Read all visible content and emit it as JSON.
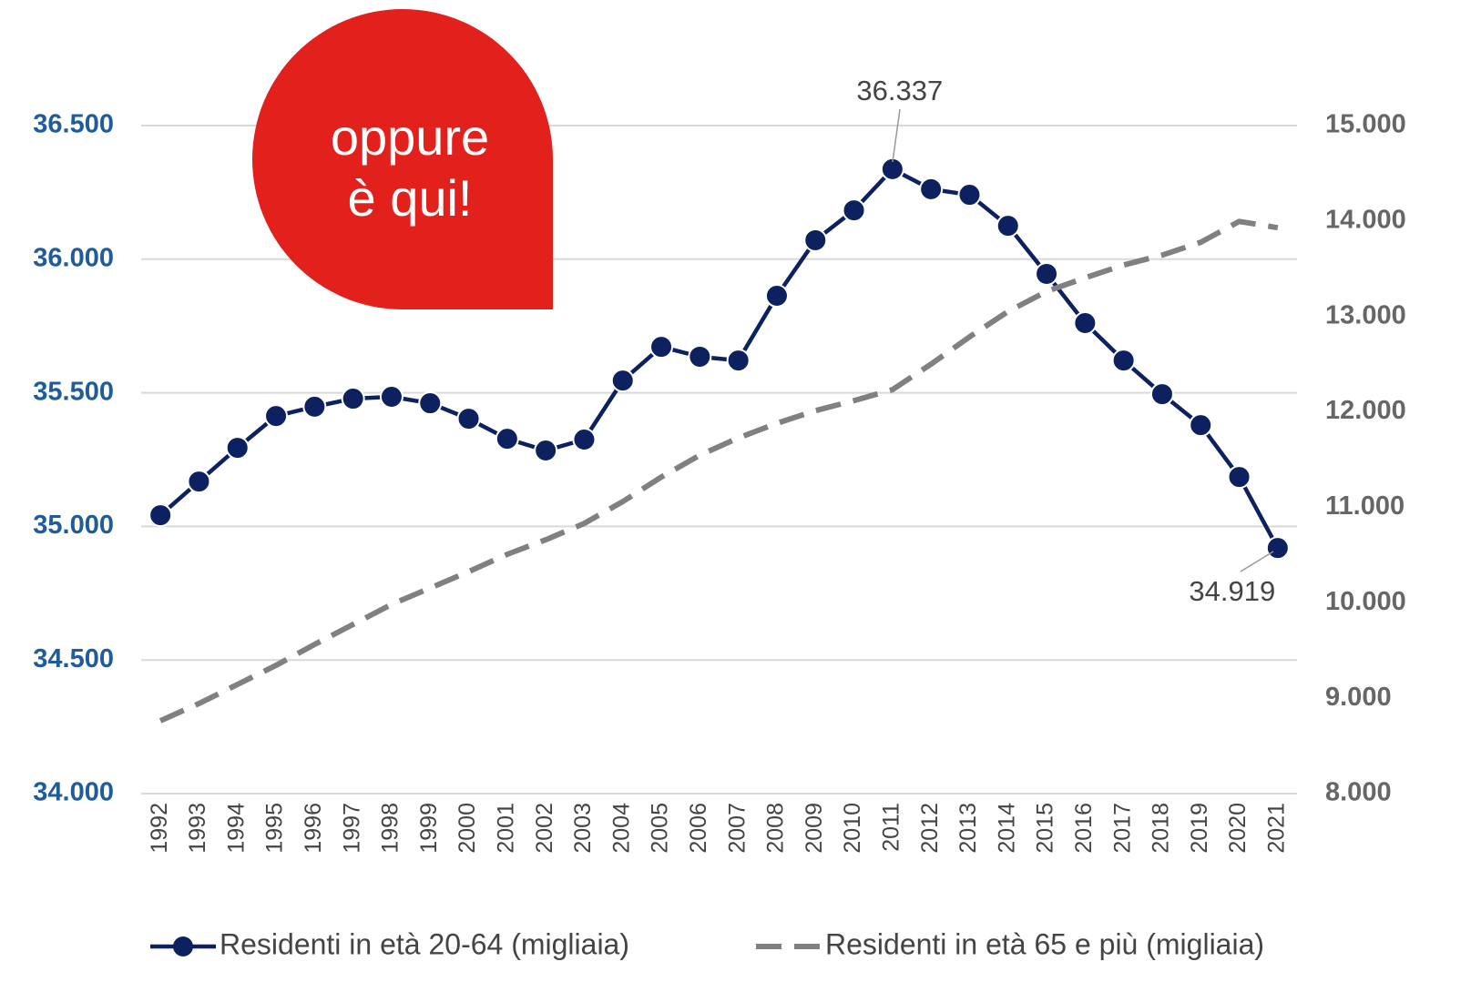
{
  "chart_data": {
    "type": "line",
    "categories": [
      "1992",
      "1993",
      "1994",
      "1995",
      "1996",
      "1997",
      "1998",
      "1999",
      "2000",
      "2001",
      "2002",
      "2003",
      "2004",
      "2005",
      "2006",
      "2007",
      "2008",
      "2009",
      "2010",
      "2011",
      "2012",
      "2013",
      "2014",
      "2015",
      "2016",
      "2017",
      "2018",
      "2019",
      "2020",
      "2021"
    ],
    "series": [
      {
        "name": "Residenti in età 20-64 (migliaia)",
        "color": "#0d2160",
        "axis": "y",
        "markers": true,
        "values": [
          35042,
          35168,
          35294,
          35413,
          35448,
          35478,
          35485,
          35461,
          35403,
          35328,
          35284,
          35325,
          35546,
          35672,
          35635,
          35621,
          35863,
          36071,
          36183,
          36337,
          36262,
          36241,
          36125,
          35945,
          35761,
          35621,
          35495,
          35379,
          35185,
          34919
        ],
        "value_labels": [
          null,
          null,
          null,
          null,
          null,
          null,
          null,
          null,
          null,
          null,
          null,
          null,
          null,
          null,
          null,
          null,
          null,
          null,
          null,
          "36.337",
          null,
          null,
          null,
          null,
          null,
          null,
          null,
          null,
          null,
          "34.919"
        ]
      },
      {
        "name": "Residenti in età 65 e più (migliaia)",
        "color": "#808080",
        "axis": "y2",
        "dashed": true,
        "values": [
          8763,
          8944,
          9144,
          9344,
          9563,
          9773,
          9983,
          10154,
          10326,
          10507,
          10660,
          10831,
          11060,
          11317,
          11546,
          11727,
          11880,
          12013,
          12118,
          12233,
          12500,
          12786,
          13052,
          13262,
          13405,
          13539,
          13643,
          13777,
          13996,
          13930
        ]
      }
    ],
    "ylim": [
      34000,
      36500
    ],
    "yticks": [
      {
        "value": 34000,
        "label": "34.000"
      },
      {
        "value": 34500,
        "label": "34.500"
      },
      {
        "value": 35000,
        "label": "35.000"
      },
      {
        "value": 35500,
        "label": "35.500"
      },
      {
        "value": 36000,
        "label": "36.000"
      },
      {
        "value": 36500,
        "label": "36.500"
      }
    ],
    "y2lim": [
      8000,
      15000
    ],
    "y2ticks": [
      {
        "value": 8000,
        "label": "8.000"
      },
      {
        "value": 9000,
        "label": "9.000"
      },
      {
        "value": 10000,
        "label": "10.000"
      },
      {
        "value": 11000,
        "label": "11.000"
      },
      {
        "value": 12000,
        "label": "12.000"
      },
      {
        "value": 13000,
        "label": "13.000"
      },
      {
        "value": 14000,
        "label": "14.000"
      },
      {
        "value": 15000,
        "label": "15.000"
      }
    ],
    "grid": true,
    "legend": "bottom",
    "annotation": [
      "oppure",
      "è qui!"
    ]
  }
}
